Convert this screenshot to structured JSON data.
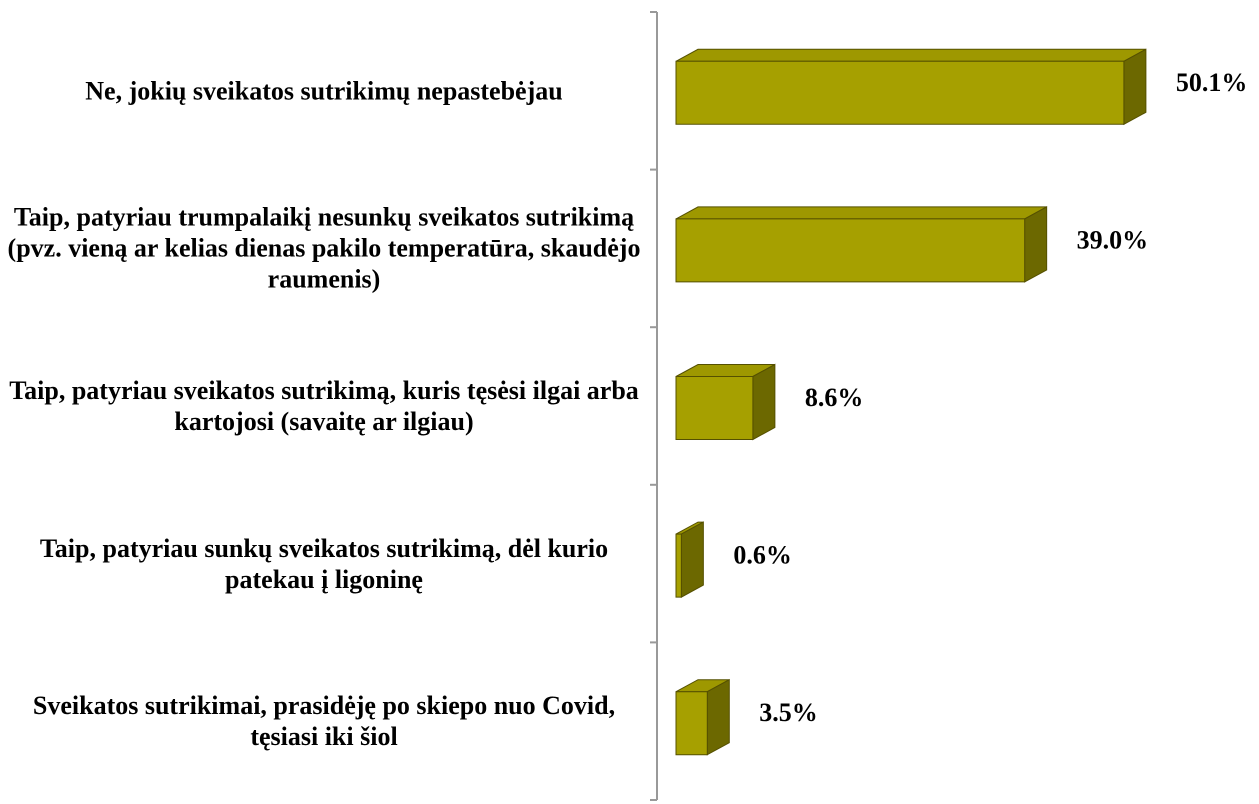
{
  "chart_data": {
    "type": "bar3d",
    "categories": [
      "Ne, jokių sveikatos sutrikimų nepastebėjau",
      "Taip, patyriau trumpalaikį nesunkų sveikatos sutrikimą (pvz. vieną ar kelias dienas pakilo temperatūra, skaudėjo raumenis)",
      "Taip, patyriau sveikatos sutrikimą, kuris tęsėsi ilgai arba kartojosi (savaitę ar ilgiau)",
      "Taip, patyriau sunkų sveikatos sutrikimą, dėl kurio patekau į ligoninę",
      "Sveikatos sutrikimai, prasidėję po skiepo nuo Covid, tęsiasi iki šiol"
    ],
    "values": [
      50.1,
      39.0,
      8.6,
      0.6,
      3.5
    ],
    "value_labels": [
      "50.1%",
      "39.0%",
      "8.6%",
      "0.6%",
      "3.5%"
    ],
    "color": "#a6a000"
  }
}
